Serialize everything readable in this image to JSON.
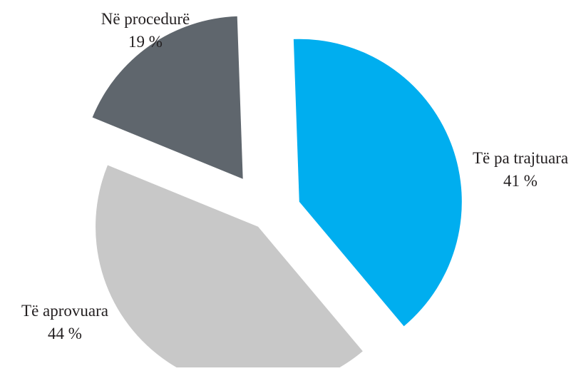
{
  "chart_data": {
    "type": "pie",
    "title": "",
    "exploded": true,
    "legend": "none",
    "slices": [
      {
        "label": "Të pa trajtuara",
        "value_label": "41 %",
        "value": 41,
        "color": "#00aeef"
      },
      {
        "label": "Të aprovuara",
        "value_label": "44 %",
        "value": 44,
        "color": "#c8c8c8"
      },
      {
        "label": "Në procedurë",
        "value_label": "19 %",
        "value": 19,
        "color": "#5f666d"
      }
    ]
  }
}
